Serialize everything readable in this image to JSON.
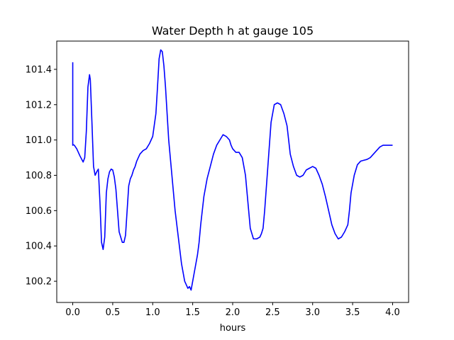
{
  "chart_data": {
    "type": "line",
    "title": "Water Depth h at gauge 105",
    "xlabel": "hours",
    "ylabel": "",
    "xlim": [
      -0.2,
      4.2
    ],
    "ylim": [
      100.08,
      101.56
    ],
    "xticks": [
      0.0,
      0.5,
      1.0,
      1.5,
      2.0,
      2.5,
      3.0,
      3.5,
      4.0
    ],
    "xtick_labels": [
      "0.0",
      "0.5",
      "1.0",
      "1.5",
      "2.0",
      "2.5",
      "3.0",
      "3.5",
      "4.0"
    ],
    "yticks": [
      100.2,
      100.4,
      100.6,
      100.8,
      101.0,
      101.2,
      101.4
    ],
    "ytick_labels": [
      "100.2",
      "100.4",
      "100.6",
      "100.8",
      "101.0",
      "101.2",
      "101.4"
    ],
    "grid": false,
    "legend": "none",
    "series": [
      {
        "color": "#0000ff",
        "x": [
          0.0,
          0.0,
          0.0,
          0.02,
          0.05,
          0.09,
          0.13,
          0.15,
          0.17,
          0.19,
          0.21,
          0.22,
          0.24,
          0.26,
          0.28,
          0.3,
          0.32,
          0.34,
          0.36,
          0.38,
          0.4,
          0.42,
          0.44,
          0.46,
          0.48,
          0.5,
          0.52,
          0.54,
          0.56,
          0.58,
          0.6,
          0.62,
          0.64,
          0.66,
          0.68,
          0.7,
          0.72,
          0.74,
          0.76,
          0.78,
          0.8,
          0.84,
          0.88,
          0.92,
          0.96,
          1.0,
          1.04,
          1.06,
          1.08,
          1.1,
          1.12,
          1.14,
          1.16,
          1.18,
          1.2,
          1.24,
          1.28,
          1.32,
          1.36,
          1.4,
          1.44,
          1.46,
          1.48,
          1.5,
          1.52,
          1.54,
          1.56,
          1.58,
          1.6,
          1.64,
          1.68,
          1.72,
          1.76,
          1.8,
          1.84,
          1.88,
          1.92,
          1.96,
          1.98,
          2.0,
          2.04,
          2.08,
          2.12,
          2.16,
          2.18,
          2.2,
          2.22,
          2.26,
          2.3,
          2.34,
          2.36,
          2.38,
          2.4,
          2.44,
          2.48,
          2.52,
          2.56,
          2.6,
          2.64,
          2.68,
          2.7,
          2.72,
          2.76,
          2.8,
          2.84,
          2.88,
          2.92,
          2.96,
          2.98,
          3.0,
          3.04,
          3.08,
          3.12,
          3.16,
          3.2,
          3.24,
          3.28,
          3.32,
          3.36,
          3.4,
          3.44,
          3.46,
          3.48,
          3.52,
          3.56,
          3.6,
          3.64,
          3.68,
          3.72,
          3.76,
          3.8,
          3.84,
          3.88,
          3.92,
          3.96,
          4.0
        ],
        "y": [
          101.44,
          100.97,
          100.975,
          100.97,
          100.95,
          100.91,
          100.875,
          100.9,
          101.05,
          101.3,
          101.37,
          101.34,
          101.1,
          100.85,
          100.8,
          100.82,
          100.835,
          100.65,
          100.42,
          100.38,
          100.45,
          100.7,
          100.78,
          100.82,
          100.835,
          100.83,
          100.79,
          100.72,
          100.6,
          100.48,
          100.45,
          100.42,
          100.42,
          100.46,
          100.6,
          100.74,
          100.78,
          100.8,
          100.83,
          100.85,
          100.88,
          100.92,
          100.94,
          100.95,
          100.98,
          101.02,
          101.15,
          101.3,
          101.46,
          101.51,
          101.5,
          101.42,
          101.3,
          101.15,
          101.0,
          100.8,
          100.6,
          100.45,
          100.3,
          100.2,
          100.16,
          100.17,
          100.15,
          100.2,
          100.25,
          100.3,
          100.35,
          100.42,
          100.52,
          100.68,
          100.78,
          100.85,
          100.92,
          100.97,
          101.0,
          101.03,
          101.02,
          101.0,
          100.97,
          100.95,
          100.93,
          100.93,
          100.9,
          100.8,
          100.7,
          100.6,
          100.5,
          100.44,
          100.44,
          100.45,
          100.47,
          100.5,
          100.6,
          100.85,
          101.1,
          101.2,
          101.21,
          101.2,
          101.15,
          101.08,
          101.0,
          100.92,
          100.85,
          100.8,
          100.79,
          100.8,
          100.83,
          100.84,
          100.845,
          100.85,
          100.84,
          100.8,
          100.75,
          100.68,
          100.6,
          100.52,
          100.47,
          100.44,
          100.45,
          100.48,
          100.52,
          100.6,
          100.7,
          100.8,
          100.86,
          100.88,
          100.885,
          100.89,
          100.9,
          100.92,
          100.94,
          100.96,
          100.97,
          100.97,
          100.97,
          100.97
        ]
      }
    ]
  }
}
